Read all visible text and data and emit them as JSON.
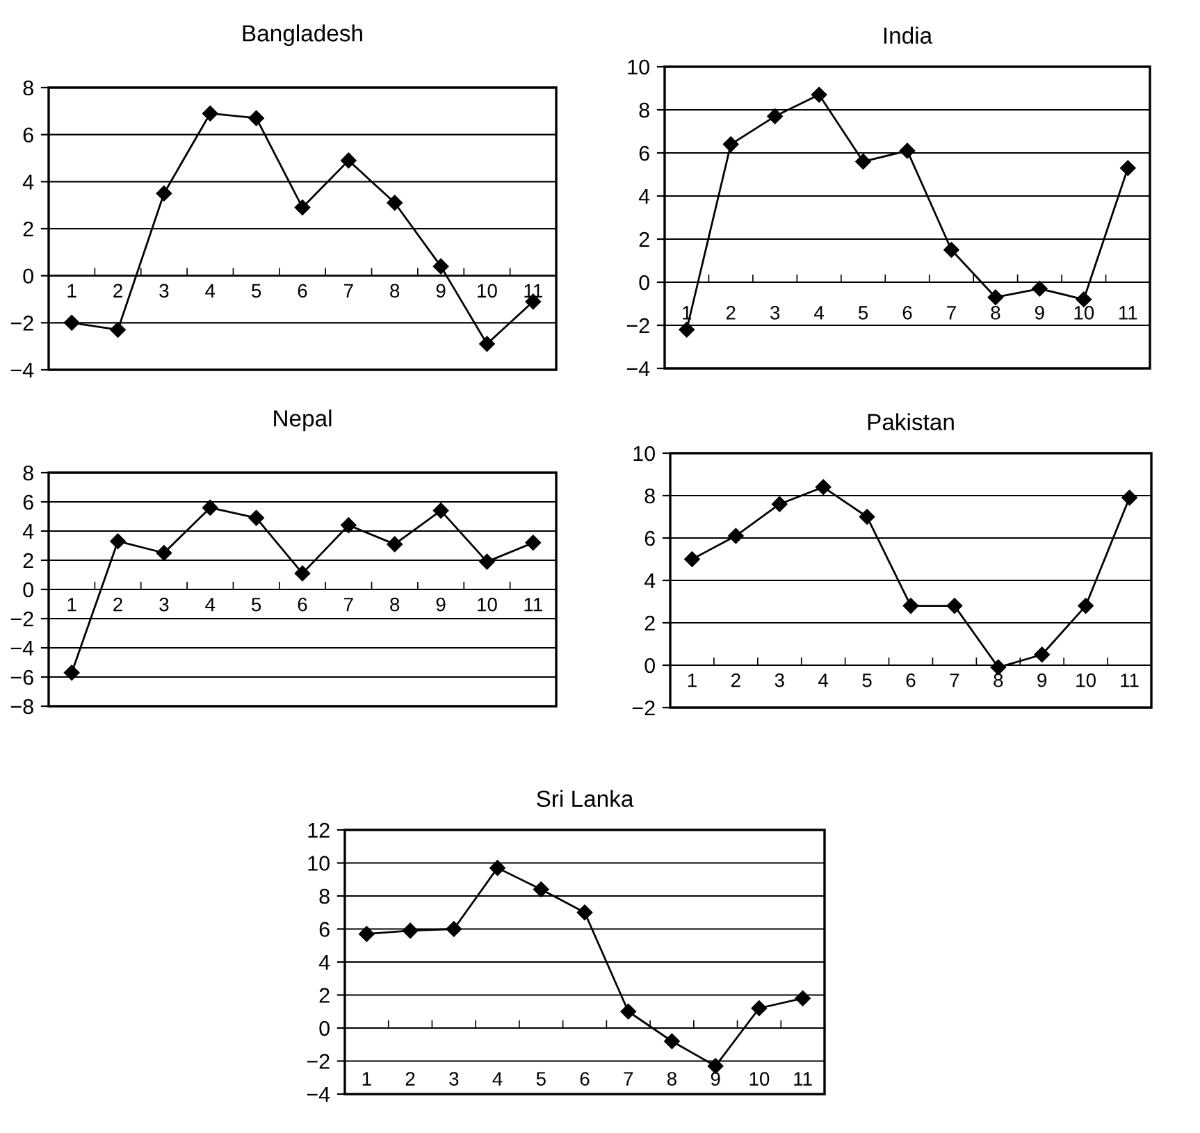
{
  "chart_data": [
    {
      "type": "line",
      "title": "Bangladesh",
      "categories": [
        "1",
        "2",
        "3",
        "4",
        "5",
        "6",
        "7",
        "8",
        "9",
        "10",
        "11"
      ],
      "series": [
        {
          "color": "#000000",
          "values": [
            -2,
            -2.3,
            3.5,
            6.9,
            6.7,
            2.9,
            4.9,
            3.1,
            0.4,
            -2.9,
            -1.1
          ]
        }
      ],
      "ylim": [
        -4,
        8
      ],
      "yticks": [
        -4,
        -2,
        0,
        2,
        4,
        6,
        8
      ],
      "grid": "y",
      "marker": "diamond",
      "line_style": "solid"
    },
    {
      "type": "line",
      "title": "India",
      "categories": [
        "1",
        "2",
        "3",
        "4",
        "5",
        "6",
        "7",
        "8",
        "9",
        "10",
        "11"
      ],
      "series": [
        {
          "color": "#000000",
          "values": [
            -2.2,
            6.4,
            7.7,
            8.7,
            5.6,
            6.1,
            1.5,
            -0.7,
            -0.3,
            -0.8,
            5.3
          ]
        }
      ],
      "ylim": [
        -4,
        10
      ],
      "yticks": [
        -4,
        -2,
        0,
        2,
        4,
        6,
        8,
        10
      ],
      "grid": "y",
      "marker": "diamond",
      "line_style": "solid"
    },
    {
      "type": "line",
      "title": "Nepal",
      "categories": [
        "1",
        "2",
        "3",
        "4",
        "5",
        "6",
        "7",
        "8",
        "9",
        "10",
        "11"
      ],
      "series": [
        {
          "color": "#000000",
          "values": [
            -5.7,
            3.3,
            2.5,
            5.6,
            4.9,
            1.1,
            4.4,
            3.1,
            5.4,
            1.9,
            3.2
          ]
        }
      ],
      "ylim": [
        -8,
        8
      ],
      "yticks": [
        -8,
        -6,
        -4,
        -2,
        0,
        2,
        4,
        6,
        8
      ],
      "grid": "y",
      "marker": "diamond",
      "line_style": "solid"
    },
    {
      "type": "line",
      "title": "Pakistan",
      "categories": [
        "1",
        "2",
        "3",
        "4",
        "5",
        "6",
        "7",
        "8",
        "9",
        "10",
        "11"
      ],
      "series": [
        {
          "color": "#000000",
          "values": [
            5.0,
            6.1,
            7.6,
            8.4,
            7.0,
            2.8,
            2.8,
            -0.1,
            0.5,
            2.8,
            7.9
          ]
        }
      ],
      "ylim": [
        -2,
        10
      ],
      "yticks": [
        -2,
        0,
        2,
        4,
        6,
        8,
        10
      ],
      "grid": "y",
      "marker": "diamond",
      "line_style": "solid"
    },
    {
      "type": "line",
      "title": "Sri Lanka",
      "categories": [
        "1",
        "2",
        "3",
        "4",
        "5",
        "6",
        "7",
        "8",
        "9",
        "10",
        "11"
      ],
      "series": [
        {
          "color": "#000000",
          "values": [
            5.7,
            5.9,
            6.0,
            9.7,
            8.4,
            7.0,
            1.0,
            -0.8,
            -2.3,
            1.2,
            1.8
          ]
        }
      ],
      "ylim": [
        -4,
        12
      ],
      "yticks": [
        -4,
        -2,
        0,
        2,
        4,
        6,
        8,
        10,
        12
      ],
      "grid": "y",
      "marker": "diamond",
      "line_style": "solid"
    }
  ]
}
